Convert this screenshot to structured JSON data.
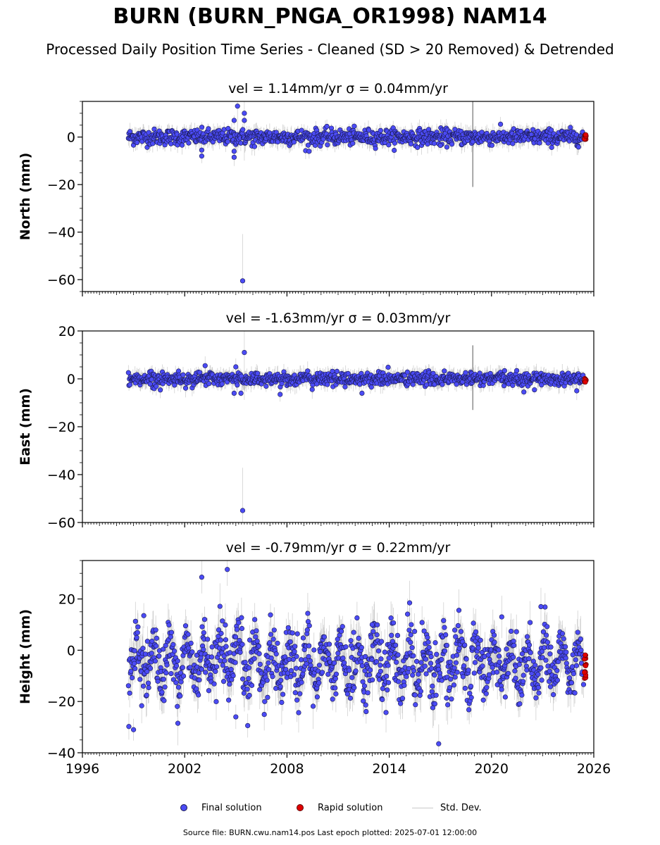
{
  "title": "BURN (BURN_PNGA_OR1998) NAM14",
  "subtitle": "Processed Daily Position Time Series - Cleaned (SD > 20 Removed) & Detrended",
  "legend": {
    "final": "Final solution",
    "rapid": "Rapid solution",
    "stddev": "Std. Dev."
  },
  "footer": "Source file: BURN.cwu.nam14.pos  Last epoch plotted: 2025-07-01 12:00:00",
  "colors": {
    "final": "#4b4bf5",
    "rapid": "#e00000",
    "stddev": "#9a9a9a",
    "edge": "#1a1a50"
  },
  "chart_data": [
    {
      "type": "scatter",
      "panel_title": "vel = 1.14mm/yr   σ = 0.04mm/yr",
      "ylabel": "North (mm)",
      "xlim": [
        1996,
        2026
      ],
      "ylim": [
        -65,
        15
      ],
      "yticks": [
        0,
        -20,
        -40,
        -60
      ],
      "xticklabels": [],
      "series_final": {
        "name": "Final solution",
        "x_range": [
          1998.7,
          2025.4
        ],
        "typical_band": [
          -3,
          3
        ],
        "outliers": [
          [
            2005.4,
            -60.5
          ],
          [
            2005.1,
            13
          ],
          [
            2005.5,
            10
          ],
          [
            2005.5,
            7
          ],
          [
            2004.9,
            7
          ],
          [
            2003.0,
            -5.5
          ],
          [
            2003.0,
            -8
          ],
          [
            2004.9,
            -8.5
          ],
          [
            2004.9,
            -6
          ],
          [
            2009.3,
            -6
          ],
          [
            2006.1,
            -4
          ],
          [
            2017.0,
            -3.5
          ],
          [
            2018.9,
            -2
          ]
        ]
      },
      "series_rapid": {
        "name": "Rapid solution",
        "x_range": [
          2025.45,
          2025.55
        ],
        "y_range": [
          -1,
          1
        ]
      }
    },
    {
      "type": "scatter",
      "panel_title": "vel = -1.63mm/yr   σ = 0.03mm/yr",
      "ylabel": "East (mm)",
      "xlim": [
        1996,
        2026
      ],
      "ylim": [
        -60,
        20
      ],
      "yticks": [
        20,
        0,
        -20,
        -40,
        -60
      ],
      "xticklabels": [],
      "series_final": {
        "name": "Final solution",
        "x_range": [
          1998.7,
          2025.4
        ],
        "typical_band": [
          -2.5,
          2.5
        ],
        "outliers": [
          [
            2005.4,
            -55
          ],
          [
            2005.5,
            11
          ],
          [
            2005.0,
            5
          ],
          [
            2005.3,
            -6
          ],
          [
            2004.9,
            -6
          ],
          [
            2007.6,
            -6.5
          ],
          [
            2012.4,
            -6
          ],
          [
            2021.9,
            -5.5
          ],
          [
            2025.0,
            -5
          ],
          [
            2003.2,
            5.5
          ]
        ]
      },
      "series_rapid": {
        "name": "Rapid solution",
        "x_range": [
          2025.45,
          2025.55
        ],
        "y_range": [
          -1.5,
          0.5
        ]
      }
    },
    {
      "type": "scatter",
      "panel_title": "vel = -0.79mm/yr   σ = 0.22mm/yr",
      "ylabel": "Height (mm)",
      "xlim": [
        1996,
        2026
      ],
      "ylim": [
        -40,
        35
      ],
      "yticks": [
        20,
        0,
        -20,
        -40
      ],
      "xticklabels": [
        "1996",
        "2002",
        "2008",
        "2014",
        "2020",
        "2026"
      ],
      "series_final": {
        "name": "Final solution",
        "x_range": [
          1998.7,
          2025.4
        ],
        "typical_band": [
          -18,
          8
        ],
        "outliers": [
          [
            2004.5,
            31.5
          ],
          [
            2003.0,
            28.5
          ],
          [
            2016.9,
            -36.5
          ],
          [
            1999.0,
            -31
          ],
          [
            2022.9,
            17
          ],
          [
            2005.0,
            -26
          ],
          [
            2001.6,
            -28.5
          ],
          [
            1999.6,
            13.5
          ],
          [
            2020.6,
            13
          ],
          [
            2013.0,
            10
          ]
        ]
      },
      "series_rapid": {
        "name": "Rapid solution",
        "x_range": [
          2025.45,
          2025.55
        ],
        "y_range": [
          -11,
          -1
        ]
      }
    }
  ]
}
